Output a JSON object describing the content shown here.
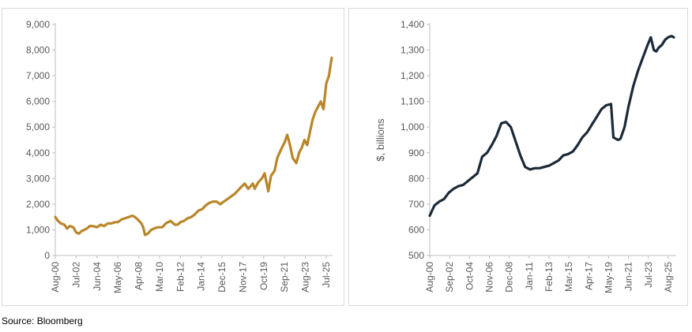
{
  "source_text": "Source: Bloomberg",
  "chart_data": [
    {
      "type": "line",
      "title": "",
      "xlabel": "",
      "ylabel": "",
      "ylim": [
        0,
        9000
      ],
      "yticks": [
        "0",
        "1,000",
        "2,000",
        "3,000",
        "4,000",
        "5,000",
        "6,000",
        "7,000",
        "8,000",
        "9,000"
      ],
      "ytick_values": [
        0,
        1000,
        2000,
        3000,
        4000,
        5000,
        6000,
        7000,
        8000,
        9000
      ],
      "xticks": [
        "Aug-00",
        "Jul-02",
        "Jun-04",
        "May-06",
        "Apr-08",
        "Mar-10",
        "Feb-12",
        "Jan-14",
        "Dec-15",
        "Nov-17",
        "Oct-19",
        "Sep-21",
        "Aug-23",
        "Jul-25"
      ],
      "xlim": [
        "2000-08",
        "2026-02"
      ],
      "grid": false,
      "legend": "none",
      "color": "#B8862B",
      "series": [
        {
          "x": [
            "2000-08",
            "2000-11",
            "2001-02",
            "2001-06",
            "2001-09",
            "2001-12",
            "2002-04",
            "2002-07",
            "2002-10",
            "2003-01",
            "2003-04",
            "2003-07",
            "2003-10",
            "2004-01",
            "2004-06",
            "2004-10",
            "2005-02",
            "2005-06",
            "2005-10",
            "2006-02",
            "2006-05",
            "2006-09",
            "2007-01",
            "2007-05",
            "2007-09",
            "2007-12",
            "2008-03",
            "2008-07",
            "2008-09",
            "2008-11",
            "2009-02",
            "2009-06",
            "2009-09",
            "2010-01",
            "2010-06",
            "2010-10",
            "2011-03",
            "2011-08",
            "2011-11",
            "2012-02",
            "2012-06",
            "2012-10",
            "2013-02",
            "2013-06",
            "2013-10",
            "2014-02",
            "2014-06",
            "2014-10",
            "2015-02",
            "2015-06",
            "2015-10",
            "2016-02",
            "2016-06",
            "2016-10",
            "2017-02",
            "2017-06",
            "2017-10",
            "2018-01",
            "2018-05",
            "2018-10",
            "2018-12",
            "2019-04",
            "2019-08",
            "2019-11",
            "2020-03",
            "2020-06",
            "2020-10",
            "2021-01",
            "2021-06",
            "2021-09",
            "2021-12",
            "2022-03",
            "2022-06",
            "2022-10",
            "2023-01",
            "2023-04",
            "2023-07",
            "2023-10",
            "2024-01",
            "2024-04",
            "2024-07",
            "2024-10",
            "2025-01",
            "2025-04",
            "2025-07",
            "2025-10",
            "2026-01"
          ],
          "values": [
            1500,
            1350,
            1250,
            1200,
            1050,
            1150,
            1100,
            900,
            850,
            950,
            1000,
            1050,
            1150,
            1150,
            1100,
            1200,
            1150,
            1250,
            1250,
            1300,
            1300,
            1400,
            1450,
            1500,
            1550,
            1500,
            1400,
            1250,
            1100,
            800,
            850,
            1000,
            1050,
            1100,
            1100,
            1250,
            1350,
            1200,
            1200,
            1300,
            1350,
            1450,
            1500,
            1600,
            1750,
            1800,
            1950,
            2050,
            2100,
            2100,
            2000,
            2100,
            2200,
            2300,
            2400,
            2550,
            2700,
            2800,
            2600,
            2800,
            2600,
            2850,
            3000,
            3200,
            2500,
            3100,
            3300,
            3800,
            4200,
            4400,
            4700,
            4300,
            3800,
            3600,
            4000,
            4200,
            4500,
            4300,
            4800,
            5300,
            5600,
            5800,
            6000,
            5700,
            6700,
            7000,
            7700
          ]
        }
      ]
    },
    {
      "type": "line",
      "title": "",
      "xlabel": "",
      "ylabel": "$, billions",
      "ylim": [
        500,
        1400
      ],
      "yticks": [
        "500",
        "600",
        "700",
        "800",
        "900",
        "1,000",
        "1,100",
        "1,200",
        "1,300",
        "1,400"
      ],
      "ytick_values": [
        500,
        600,
        700,
        800,
        900,
        1000,
        1100,
        1200,
        1300,
        1400
      ],
      "xticks": [
        "Aug-00",
        "Sep-02",
        "Oct-04",
        "Nov-06",
        "Dec-08",
        "Jan-11",
        "Feb-13",
        "Mar-15",
        "Apr-17",
        "May-19",
        "Jun-21",
        "Jul-23",
        "Aug-25"
      ],
      "xlim": [
        "2000-08",
        "2026-06"
      ],
      "grid": false,
      "legend": "none",
      "color": "#1C2A38",
      "series": [
        {
          "x": [
            "2000-08",
            "2001-02",
            "2001-08",
            "2002-02",
            "2002-08",
            "2003-02",
            "2003-08",
            "2004-02",
            "2004-08",
            "2005-02",
            "2005-08",
            "2006-02",
            "2006-08",
            "2007-02",
            "2007-08",
            "2008-02",
            "2008-08",
            "2009-02",
            "2009-08",
            "2010-02",
            "2010-08",
            "2011-02",
            "2011-08",
            "2012-02",
            "2012-08",
            "2013-02",
            "2013-08",
            "2014-02",
            "2014-08",
            "2015-02",
            "2015-08",
            "2016-02",
            "2016-08",
            "2017-02",
            "2017-08",
            "2018-02",
            "2018-08",
            "2019-02",
            "2019-08",
            "2019-11",
            "2020-02",
            "2020-05",
            "2020-08",
            "2021-01",
            "2021-06",
            "2021-12",
            "2022-06",
            "2022-12",
            "2023-06",
            "2023-10",
            "2024-02",
            "2024-05",
            "2024-08",
            "2024-12",
            "2025-04",
            "2025-08",
            "2025-12",
            "2026-03"
          ],
          "values": [
            655,
            695,
            710,
            720,
            745,
            760,
            770,
            775,
            790,
            805,
            820,
            885,
            900,
            930,
            965,
            1015,
            1020,
            1000,
            945,
            890,
            845,
            835,
            840,
            840,
            845,
            850,
            860,
            870,
            890,
            895,
            905,
            930,
            960,
            980,
            1010,
            1040,
            1070,
            1085,
            1090,
            960,
            955,
            950,
            955,
            1000,
            1080,
            1160,
            1220,
            1270,
            1320,
            1350,
            1300,
            1295,
            1310,
            1320,
            1340,
            1350,
            1355,
            1350
          ]
        }
      ]
    }
  ]
}
